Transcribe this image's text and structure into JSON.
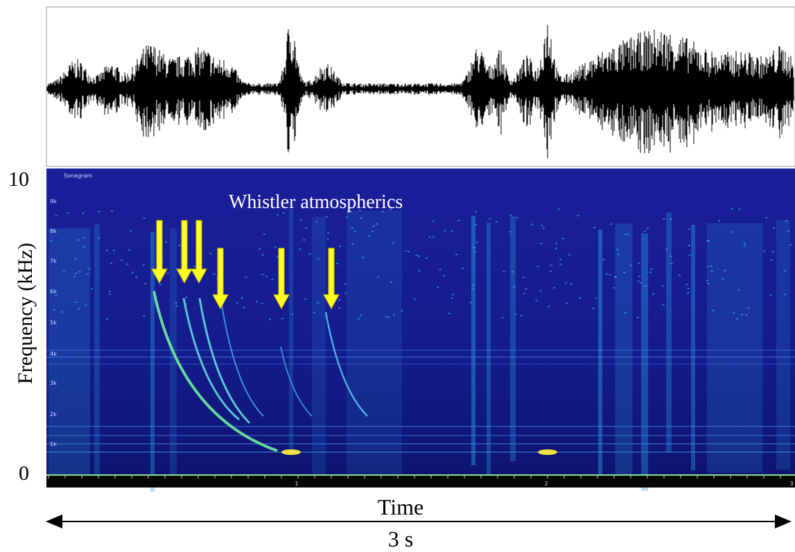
{
  "waveform": {
    "panel": "waveform"
  },
  "spectrogram": {
    "label": "Sonagram",
    "freq_ticks": [
      "9k",
      "8k",
      "7k",
      "6k",
      "5k",
      "4k",
      "3k",
      "2k",
      "1k"
    ],
    "time_ticks": [
      "1",
      "2",
      "3"
    ],
    "annotation": "Whistler atmospherics"
  },
  "axes": {
    "y_top": "10",
    "y_bottom": "0",
    "y_label": "Frequency (kHz)",
    "x_label": "Time",
    "duration": "3 s"
  }
}
